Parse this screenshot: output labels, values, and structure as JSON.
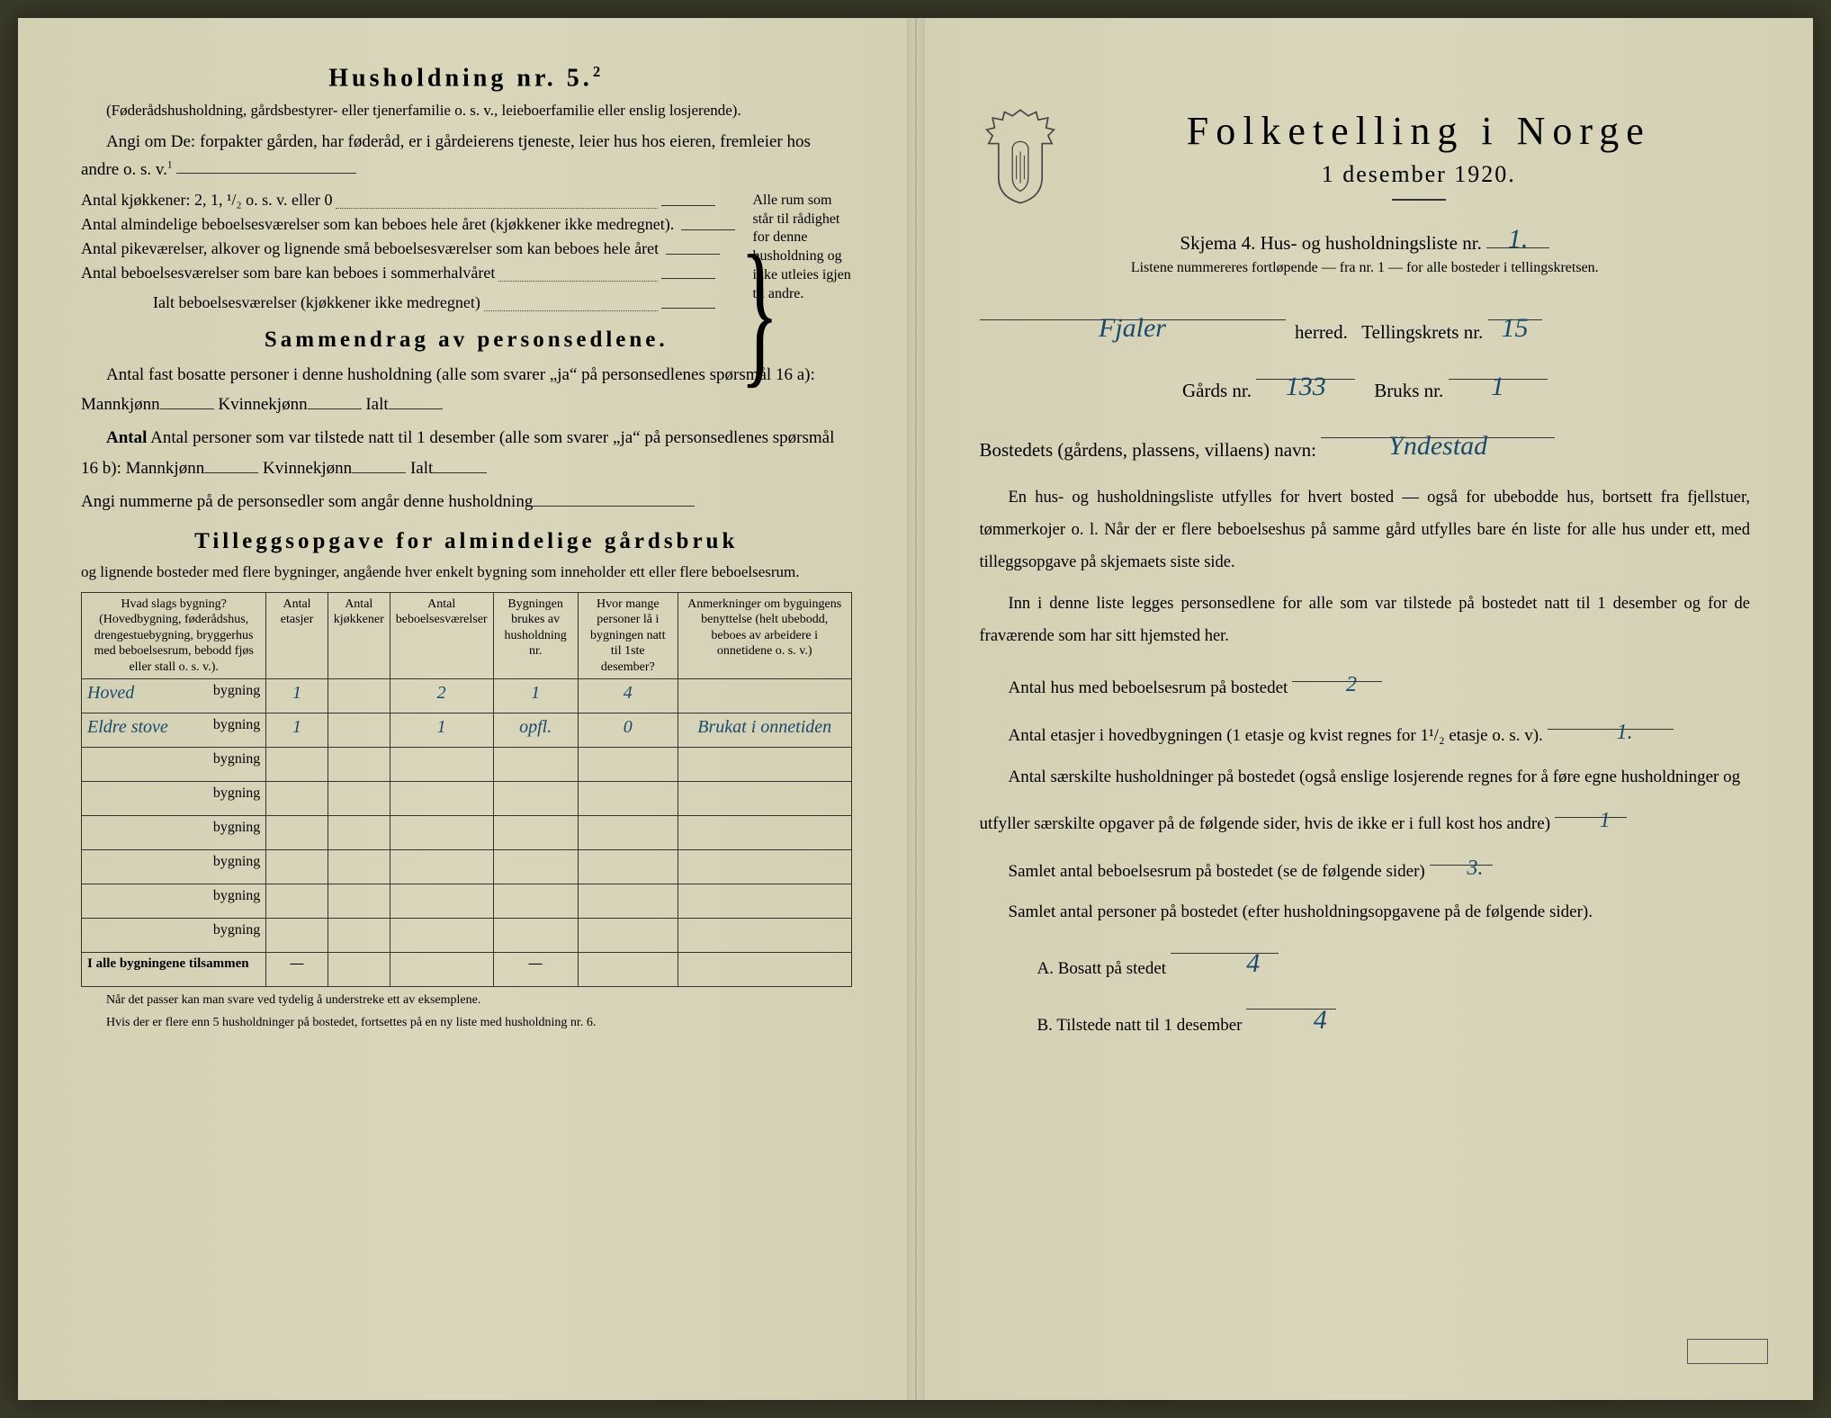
{
  "left": {
    "household_title": "Husholdning nr. 5.",
    "household_sup": "2",
    "paren_note": "(Føderådshusholdning, gårdsbestyrer- eller tjenerfamilie o. s. v., leieboerfamilie eller enslig losjerende).",
    "angi_line": "Angi om De: forpakter gården, har føderåd, er i gårdeierens tjeneste, leier hus hos eieren, fremleier hos andre o. s. v.",
    "angi_sup": "1",
    "rooms": {
      "kitchens": "Antal kjøkkener: 2, 1, ¹/₂ o. s. v. eller 0",
      "ordinary": "Antal almindelige beboelsesværelser som kan beboes hele året (kjøkkener ikke medregnet).",
      "maids": "Antal pikeværelser, alkover og lignende små beboelsesværelser som kan beboes hele året",
      "summer": "Antal beboelsesværelser som bare kan beboes i sommerhalvåret",
      "total": "Ialt beboelsesværelser (kjøkkener ikke medregnet)",
      "side_note": "Alle rum som står til rådighet for denne husholdning og ikke utleies igjen til andre."
    },
    "summary_title": "Sammendrag av personsedlene.",
    "summary_p1a": "Antal fast bosatte personer i denne husholdning (alle som svarer „ja“ på personsedlenes spørsmål 16 a): Mannkjønn",
    "summary_p1b": "Kvinnekjønn",
    "summary_p1c": "Ialt",
    "summary_p2a": "Antal personer som var tilstede natt til 1 desember (alle som svarer „ja“ på personsedlenes spørsmål 16 b): Mannkjønn",
    "summary_p3": "Angi nummerne på de personsedler som angår denne husholdning",
    "tillegg_title": "Tilleggsopgave for almindelige gårdsbruk",
    "tillegg_sub": "og lignende bosteder med flere bygninger, angående hver enkelt bygning som inneholder ett eller flere beboelsesrum.",
    "table": {
      "headers": [
        "Hvad slags bygning?\n(Hovedbygning, føderådshus, drengestuebygning, bryggerhus med beboelsesrum, bebodd fjøs eller stall o. s. v.).",
        "Antal etasjer",
        "Antal kjøkkener",
        "Antal beboelsesværelser",
        "Bygningen brukes av husholdning nr.",
        "Hvor mange personer lå i bygningen natt til 1ste desember?",
        "Anmerkninger om byguingens benyttelse (helt ubebodd, beboes av arbeidere i onnetidene o. s. v.)"
      ],
      "row_suffix": "bygning",
      "rows": [
        {
          "name": "Hoved",
          "etasjer": "1",
          "kjokken": "",
          "rom": "2",
          "hush": "1",
          "pers": "4",
          "anm": ""
        },
        {
          "name": "Eldre stove",
          "etasjer": "1",
          "kjokken": "",
          "rom": "1",
          "hush": "opfl.",
          "pers": "0",
          "anm": "Brukat i onnetiden"
        },
        {
          "name": "",
          "etasjer": "",
          "kjokken": "",
          "rom": "",
          "hush": "",
          "pers": "",
          "anm": ""
        },
        {
          "name": "",
          "etasjer": "",
          "kjokken": "",
          "rom": "",
          "hush": "",
          "pers": "",
          "anm": ""
        },
        {
          "name": "",
          "etasjer": "",
          "kjokken": "",
          "rom": "",
          "hush": "",
          "pers": "",
          "anm": ""
        },
        {
          "name": "",
          "etasjer": "",
          "kjokken": "",
          "rom": "",
          "hush": "",
          "pers": "",
          "anm": ""
        },
        {
          "name": "",
          "etasjer": "",
          "kjokken": "",
          "rom": "",
          "hush": "",
          "pers": "",
          "anm": ""
        },
        {
          "name": "",
          "etasjer": "",
          "kjokken": "",
          "rom": "",
          "hush": "",
          "pers": "",
          "anm": ""
        }
      ],
      "total_label": "I alle bygningene tilsammen",
      "dash": "—"
    },
    "footnote1": "Når det passer kan man svare ved tydelig å understreke ett av eksemplene.",
    "footnote2": "Hvis der er flere enn 5 husholdninger på bostedet, fortsettes på en ny liste med husholdning nr. 6."
  },
  "right": {
    "main_title": "Folketelling i Norge",
    "date": "1 desember 1920.",
    "schema": "Skjema 4.  Hus- og husholdningsliste nr.",
    "schema_val": "1.",
    "note": "Listene nummereres fortløpende — fra nr. 1 — for alle bosteder i tellingskretsen.",
    "herred_val": "Fjaler",
    "herred_lbl": "herred.",
    "krets_lbl": "Tellingskrets nr.",
    "krets_val": "15",
    "gard_lbl": "Gårds nr.",
    "gard_val": "133",
    "bruk_lbl": "Bruks nr.",
    "bruk_val": "1",
    "bosted_lbl": "Bostedets (gårdens, plassens, villaens) navn:",
    "bosted_val": "Yndestad",
    "para1": "En hus- og husholdningsliste utfylles for hvert bosted — også for ubebodde hus, bortsett fra fjellstuer, tømmerkojer o. l.  Når der er flere beboelseshus på samme gård utfylles bare én liste for alle hus under ett, med tilleggsopgave på skjemaets siste side.",
    "para2": "Inn i denne liste legges personsedlene for alle som var tilstede på bostedet natt til 1 desember og for de fraværende som har sitt hjemsted her.",
    "l1a": "Antal hus med beboelsesrum på bostedet",
    "l1v": "2",
    "l2a": "Antal etasjer i hovedbygningen (1 etasje og kvist regnes for 1¹/₂ etasje o. s. v).",
    "l2v": "1.",
    "l3a": "Antal særskilte husholdninger på bostedet (også enslige losjerende regnes for å føre egne husholdninger og utfyller særskilte opgaver på de følgende sider, hvis de ikke er i full kost hos andre)",
    "l3v": "1",
    "l4a": "Samlet antal beboelsesrum på bostedet (se de følgende sider)",
    "l4v": "3.",
    "l5a": "Samlet antal personer på bostedet (efter husholdningsopgavene på de følgende sider).",
    "lA": "A.  Bosatt på stedet",
    "lAv": "4",
    "lB": "B.  Tilstede natt til 1 desember",
    "lBv": "4",
    "stamp": ""
  },
  "colors": {
    "paper": "#d8d4ba",
    "ink": "#222222",
    "handwriting": "#1a4a6a"
  }
}
